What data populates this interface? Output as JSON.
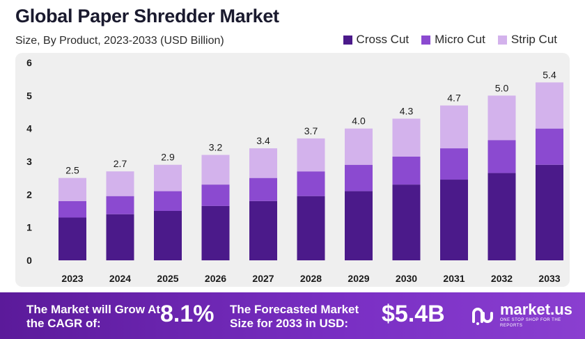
{
  "header": {
    "title": "Global Paper Shredder Market",
    "subtitle": "Size, By Product, 2023-2033 (USD Billion)"
  },
  "legend": [
    {
      "label": "Cross Cut",
      "color": "#4b1a8a"
    },
    {
      "label": "Micro Cut",
      "color": "#8b4ad0"
    },
    {
      "label": "Strip Cut",
      "color": "#d3b2ec"
    }
  ],
  "chart_data": {
    "type": "bar",
    "stacked": true,
    "categories": [
      "2023",
      "2024",
      "2025",
      "2026",
      "2027",
      "2028",
      "2029",
      "2030",
      "2031",
      "2032",
      "2033"
    ],
    "series": [
      {
        "name": "Cross Cut",
        "color": "#4b1a8a",
        "values": [
          1.3,
          1.4,
          1.5,
          1.65,
          1.8,
          1.95,
          2.1,
          2.3,
          2.45,
          2.65,
          2.9
        ]
      },
      {
        "name": "Micro Cut",
        "color": "#8b4ad0",
        "values": [
          0.5,
          0.55,
          0.6,
          0.65,
          0.7,
          0.75,
          0.8,
          0.85,
          0.95,
          1.0,
          1.1
        ]
      },
      {
        "name": "Strip Cut",
        "color": "#d3b2ec",
        "values": [
          0.7,
          0.75,
          0.8,
          0.9,
          0.9,
          1.0,
          1.1,
          1.15,
          1.3,
          1.35,
          1.4
        ]
      }
    ],
    "totals": [
      "2.5",
      "2.7",
      "2.9",
      "3.2",
      "3.4",
      "3.7",
      "4.0",
      "4.3",
      "4.7",
      "5.0",
      "5.4"
    ],
    "ylim": [
      0,
      6
    ],
    "yticks": [
      "0",
      "1",
      "2",
      "3",
      "4",
      "5",
      "6"
    ],
    "legend_position": "top-right",
    "grid": false
  },
  "footer": {
    "cagr_text": "The Market will Grow At the CAGR of:",
    "cagr_value": "8.1%",
    "forecast_text": "The Forecasted Market Size for 2033 in USD:",
    "forecast_value": "$5.4B",
    "brand_name": "market.us",
    "brand_tagline": "ONE STOP SHOP FOR THE REPORTS"
  }
}
